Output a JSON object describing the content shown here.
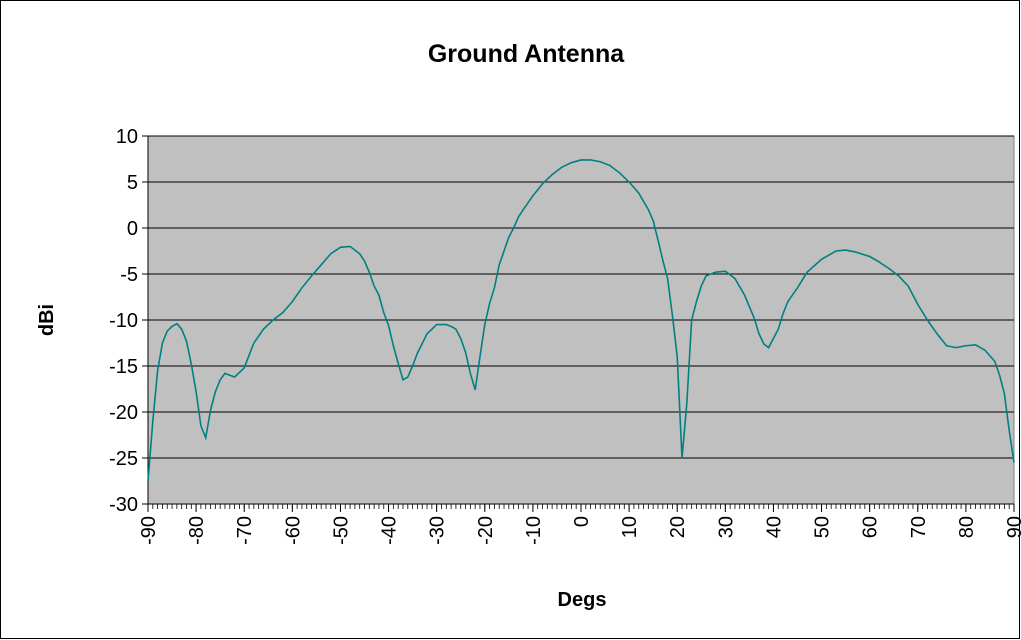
{
  "chart_data": {
    "type": "line",
    "title": "Ground Antenna",
    "x_label": "Degs",
    "y_label": "dBi",
    "x": [
      -90,
      -89,
      -88,
      -87,
      -86,
      -85,
      -84,
      -83,
      -82,
      -81,
      -80,
      -79,
      -78,
      -77,
      -76,
      -75,
      -74,
      -73,
      -72,
      -70,
      -68,
      -66,
      -64,
      -62,
      -60,
      -58,
      -56,
      -54,
      -52,
      -50,
      -48,
      -46,
      -45,
      -44,
      -43,
      -42,
      -41,
      -40,
      -39,
      -38,
      -37,
      -36,
      -35,
      -34,
      -32,
      -30,
      -28,
      -27,
      -26,
      -25,
      -24,
      -23,
      -22,
      -21,
      -20,
      -19,
      -18,
      -17,
      -16,
      -15,
      -14,
      -13,
      -12,
      -10,
      -8,
      -6,
      -4,
      -2,
      0,
      2,
      4,
      6,
      8,
      10,
      12,
      14,
      15,
      16,
      17,
      18,
      19,
      20,
      21,
      22,
      23,
      24,
      25,
      26,
      28,
      30,
      32,
      34,
      36,
      37,
      38,
      39,
      40,
      41,
      42,
      43,
      45,
      47,
      50,
      53,
      55,
      57,
      60,
      62,
      64,
      66,
      68,
      70,
      72,
      74,
      76,
      78,
      80,
      82,
      84,
      86,
      87,
      88,
      89,
      90
    ],
    "series": [
      {
        "color": "#008080",
        "values": [
          -27.5,
          -21,
          -15.5,
          -12.5,
          -11.2,
          -10.7,
          -10.4,
          -11,
          -12.3,
          -14.8,
          -17.8,
          -21.5,
          -22.8,
          -19.8,
          -17.8,
          -16.5,
          -15.8,
          -16,
          -16.2,
          -15.2,
          -12.5,
          -11,
          -10,
          -9.2,
          -8,
          -6.5,
          -5.2,
          -4,
          -2.8,
          -2.1,
          -2,
          -2.8,
          -3.6,
          -4.8,
          -6.3,
          -7.3,
          -9.2,
          -10.6,
          -12.8,
          -14.7,
          -16.5,
          -16.2,
          -15,
          -13.6,
          -11.5,
          -10.5,
          -10.5,
          -10.7,
          -11,
          -12,
          -13.5,
          -15.8,
          -17.6,
          -14,
          -10.5,
          -8.2,
          -6.5,
          -4,
          -2.5,
          -1,
          0,
          1.2,
          2,
          3.5,
          4.8,
          5.8,
          6.6,
          7.1,
          7.4,
          7.4,
          7.2,
          6.8,
          6,
          5,
          3.8,
          2,
          0.8,
          -1.3,
          -3.5,
          -5.5,
          -9.5,
          -14,
          -25,
          -19,
          -10,
          -8,
          -6.3,
          -5.2,
          -4.8,
          -4.7,
          -5.5,
          -7.3,
          -9.8,
          -11.5,
          -12.6,
          -13,
          -12,
          -11,
          -9.3,
          -8,
          -6.5,
          -4.8,
          -3.4,
          -2.5,
          -2.4,
          -2.6,
          -3.1,
          -3.7,
          -4.4,
          -5.2,
          -6.3,
          -8.3,
          -10,
          -11.5,
          -12.8,
          -13,
          -12.8,
          -12.7,
          -13.3,
          -14.5,
          -16,
          -18,
          -22,
          -25.5
        ]
      }
    ],
    "xlim": [
      -90,
      90
    ],
    "xticks": [
      -90,
      -80,
      -70,
      -60,
      -50,
      -40,
      -30,
      -20,
      -10,
      0,
      10,
      20,
      30,
      40,
      50,
      60,
      70,
      80,
      90
    ],
    "ylim": [
      -30,
      10
    ],
    "yticks": [
      -30,
      -25,
      -20,
      -15,
      -10,
      -5,
      0,
      5,
      10
    ],
    "grid": true,
    "plot_background": "#c0c0c0"
  }
}
